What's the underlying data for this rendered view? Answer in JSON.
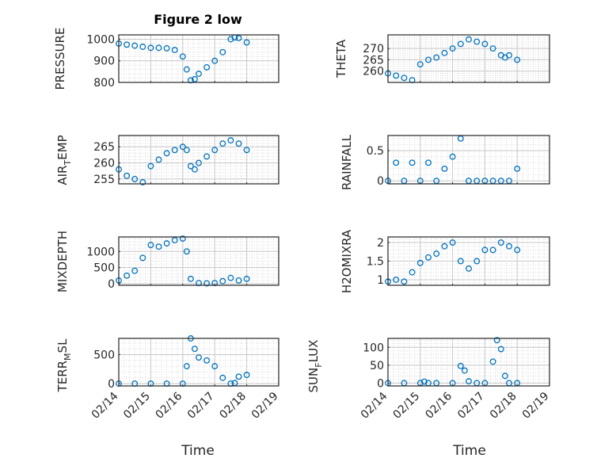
{
  "figure": {
    "title": "Figure 2 low"
  },
  "chart_data": [
    {
      "id": "pressure",
      "type": "scatter",
      "ylabel": "PRESSURE",
      "ylim": [
        800,
        1020
      ],
      "yticks": [
        800,
        900,
        1000
      ],
      "ytick_labels": [
        "800",
        "900",
        "1000"
      ],
      "xlim": [
        "02/14",
        "02/19"
      ],
      "xticks": [
        "02/14",
        "02/15",
        "02/16",
        "02/17",
        "02/18",
        "02/19"
      ],
      "grid": true,
      "x": [
        "02/14",
        "02/14 06:00",
        "02/14 12:00",
        "02/14 18:00",
        "02/15",
        "02/15 06:00",
        "02/15 12:00",
        "02/15 18:00",
        "02/16",
        "02/16 03:00",
        "02/16 06:00",
        "02/16 09:00",
        "02/16 12:00",
        "02/16 18:00",
        "02/17",
        "02/17 06:00",
        "02/17 12:00",
        "02/17 15:00",
        "02/17 18:00",
        "02/18"
      ],
      "y": [
        980,
        975,
        970,
        965,
        960,
        960,
        958,
        950,
        920,
        860,
        810,
        815,
        840,
        870,
        900,
        940,
        1000,
        1008,
        1005,
        985
      ]
    },
    {
      "id": "theta",
      "type": "scatter",
      "ylabel": "THETA",
      "ylim": [
        255,
        276
      ],
      "yticks": [
        260,
        265,
        270
      ],
      "ytick_labels": [
        "260",
        "265",
        "270"
      ],
      "xlim": [
        "02/14",
        "02/19"
      ],
      "xticks": [
        "02/14",
        "02/15",
        "02/16",
        "02/17",
        "02/18",
        "02/19"
      ],
      "grid": true,
      "x": [
        "02/14",
        "02/14 06:00",
        "02/14 12:00",
        "02/14 18:00",
        "02/15",
        "02/15 06:00",
        "02/15 12:00",
        "02/15 18:00",
        "02/16",
        "02/16 06:00",
        "02/16 12:00",
        "02/16 18:00",
        "02/17",
        "02/17 06:00",
        "02/17 12:00",
        "02/17 15:00",
        "02/17 18:00",
        "02/18"
      ],
      "y": [
        259,
        258,
        257,
        256,
        263,
        265,
        266,
        268,
        270,
        272,
        274,
        273,
        272,
        270,
        267,
        266,
        267,
        265
      ]
    },
    {
      "id": "air_temp",
      "type": "scatter",
      "ylabel": "AIR",
      "ylim": [
        253.5,
        268.5
      ],
      "yticks": [
        255,
        260,
        265
      ],
      "ytick_labels": [
        "255",
        "260",
        "265"
      ],
      "xlim": [
        "02/14",
        "02/19"
      ],
      "xticks": [
        "02/14",
        "02/15",
        "02/16",
        "02/17",
        "02/18",
        "02/19"
      ],
      "grid": true,
      "x": [
        "02/14",
        "02/14 06:00",
        "02/14 12:00",
        "02/14 18:00",
        "02/15",
        "02/15 06:00",
        "02/15 12:00",
        "02/15 18:00",
        "02/16",
        "02/16 03:00",
        "02/16 06:00",
        "02/16 09:00",
        "02/16 12:00",
        "02/16 18:00",
        "02/17",
        "02/17 06:00",
        "02/17 12:00",
        "02/17 18:00",
        "02/18"
      ],
      "y": [
        258,
        256,
        255,
        254,
        259,
        261,
        263,
        264,
        265,
        264,
        259,
        258,
        260,
        262,
        264,
        266,
        267,
        266,
        264
      ]
    },
    {
      "id": "rainfall",
      "type": "scatter",
      "ylabel": "RAINFALL",
      "ylim": [
        -0.05,
        0.75
      ],
      "yticks": [
        0,
        0.5
      ],
      "ytick_labels": [
        "0",
        "0.5"
      ],
      "xlim": [
        "02/14",
        "02/19"
      ],
      "xticks": [
        "02/14",
        "02/15",
        "02/16",
        "02/17",
        "02/18",
        "02/19"
      ],
      "grid": true,
      "x": [
        "02/14",
        "02/14 06:00",
        "02/14 12:00",
        "02/14 18:00",
        "02/15",
        "02/15 06:00",
        "02/15 12:00",
        "02/15 18:00",
        "02/16",
        "02/16 06:00",
        "02/16 12:00",
        "02/16 18:00",
        "02/17",
        "02/17 06:00",
        "02/17 12:00",
        "02/17 18:00",
        "02/18"
      ],
      "y": [
        0,
        0.3,
        0,
        0.3,
        0,
        0.3,
        0,
        0.2,
        0.4,
        0.7,
        0,
        0,
        0,
        0,
        0,
        0,
        0.2
      ]
    },
    {
      "id": "mixdepth",
      "type": "scatter",
      "ylabel": "MIXDEPTH",
      "ylim": [
        -50,
        1450
      ],
      "yticks": [
        0,
        500,
        1000
      ],
      "ytick_labels": [
        "0",
        "500",
        "1000"
      ],
      "xlim": [
        "02/14",
        "02/19"
      ],
      "xticks": [
        "02/14",
        "02/15",
        "02/16",
        "02/17",
        "02/18",
        "02/19"
      ],
      "grid": true,
      "x": [
        "02/14",
        "02/14 06:00",
        "02/14 12:00",
        "02/14 18:00",
        "02/15",
        "02/15 06:00",
        "02/15 12:00",
        "02/15 18:00",
        "02/16",
        "02/16 03:00",
        "02/16 06:00",
        "02/16 12:00",
        "02/16 18:00",
        "02/17",
        "02/17 06:00",
        "02/17 12:00",
        "02/17 18:00",
        "02/18"
      ],
      "y": [
        100,
        250,
        400,
        800,
        1200,
        1150,
        1250,
        1350,
        1400,
        1000,
        150,
        20,
        10,
        20,
        80,
        180,
        100,
        150
      ]
    },
    {
      "id": "h2omixra",
      "type": "scatter",
      "ylabel": "H2OMIXRA",
      "ylim": [
        0.85,
        2.15
      ],
      "yticks": [
        1,
        1.5,
        2
      ],
      "ytick_labels": [
        "1",
        "1.5",
        "2"
      ],
      "xlim": [
        "02/14",
        "02/19"
      ],
      "xticks": [
        "02/14",
        "02/15",
        "02/16",
        "02/17",
        "02/18",
        "02/19"
      ],
      "grid": true,
      "x": [
        "02/14",
        "02/14 06:00",
        "02/14 12:00",
        "02/14 18:00",
        "02/15",
        "02/15 06:00",
        "02/15 12:00",
        "02/15 18:00",
        "02/16",
        "02/16 06:00",
        "02/16 12:00",
        "02/16 18:00",
        "02/17",
        "02/17 06:00",
        "02/17 12:00",
        "02/17 18:00",
        "02/18"
      ],
      "y": [
        0.95,
        1.0,
        0.95,
        1.2,
        1.45,
        1.6,
        1.7,
        1.9,
        2.0,
        1.5,
        1.3,
        1.5,
        1.8,
        1.8,
        2.0,
        1.9,
        1.8
      ]
    },
    {
      "id": "terr_msl",
      "type": "scatter",
      "ylabel": "TERR",
      "ylim": [
        -40,
        780
      ],
      "yticks": [
        0,
        500
      ],
      "ytick_labels": [
        "0",
        "500"
      ],
      "xlim": [
        "02/14",
        "02/19"
      ],
      "xticks": [
        "02/14",
        "02/15",
        "02/16",
        "02/17",
        "02/18",
        "02/19"
      ],
      "grid": true,
      "x": [
        "02/14",
        "02/14 12:00",
        "02/15",
        "02/15 12:00",
        "02/16",
        "02/16 03:00",
        "02/16 06:00",
        "02/16 09:00",
        "02/16 12:00",
        "02/16 18:00",
        "02/17",
        "02/17 06:00",
        "02/17 12:00",
        "02/17 15:00",
        "02/17 18:00",
        "02/18"
      ],
      "y": [
        0,
        0,
        0,
        0,
        0,
        300,
        780,
        600,
        450,
        400,
        300,
        100,
        0,
        10,
        120,
        150
      ]
    },
    {
      "id": "sun_flux",
      "type": "scatter",
      "ylabel": "SUN",
      "ylim": [
        -8,
        125
      ],
      "yticks": [
        0,
        50,
        100
      ],
      "ytick_labels": [
        "0",
        "50",
        "100"
      ],
      "xlim": [
        "02/14",
        "02/19"
      ],
      "xticks": [
        "02/14",
        "02/15",
        "02/16",
        "02/17",
        "02/18",
        "02/19"
      ],
      "grid": true,
      "x": [
        "02/14",
        "02/14 12:00",
        "02/15",
        "02/15 03:00",
        "02/15 06:00",
        "02/15 12:00",
        "02/16",
        "02/16 06:00",
        "02/16 09:00",
        "02/16 12:00",
        "02/16 18:00",
        "02/17",
        "02/17 06:00",
        "02/17 09:00",
        "02/17 12:00",
        "02/17 15:00",
        "02/17 18:00",
        "02/18"
      ],
      "y": [
        0,
        0,
        0,
        4,
        0,
        0,
        0,
        48,
        35,
        5,
        0,
        0,
        60,
        120,
        95,
        20,
        0,
        0
      ]
    }
  ],
  "labels": {
    "air_main": "AIR",
    "air_sub": "T",
    "air_tail": "EMP",
    "terr_main": "TERR",
    "terr_sub": "M",
    "terr_tail": "SL",
    "sun_main": "SUN",
    "sun_sub": "F",
    "sun_tail": "LUX",
    "xlabel": "Time",
    "xtick_labels": [
      "02/14",
      "02/15",
      "02/16",
      "02/17",
      "02/18",
      "02/19"
    ]
  }
}
